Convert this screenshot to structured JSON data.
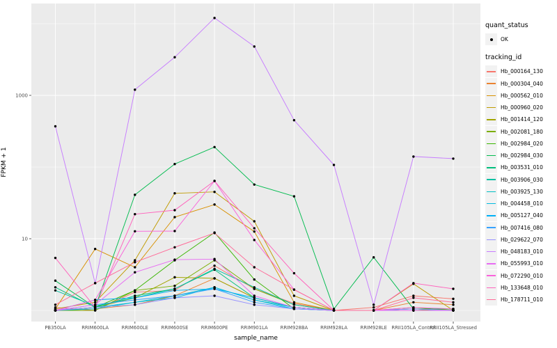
{
  "figure": {
    "y_axis": {
      "title": "FPKM + 1",
      "ticks": [
        {
          "label": "1000",
          "value": 1000
        },
        {
          "label": "10",
          "value": 10
        }
      ]
    },
    "x_axis": {
      "title": "sample_name"
    },
    "legend": {
      "quant_status": {
        "title": "quant_status",
        "items": [
          {
            "label": "OK",
            "marker": "point-icon",
            "color": "#000000"
          }
        ]
      },
      "tracking_id": {
        "title": "tracking_id"
      }
    },
    "colors": {
      "panel_bg": "#EBEBEB",
      "grid": "#FFFFFF",
      "tick_text": "#4D4D4D",
      "tick_mark": "#333333",
      "point": "#000000",
      "legend_key_bg": "#F2F2F2"
    }
  },
  "chart_data": {
    "type": "line",
    "title": "",
    "xlabel": "sample_name",
    "ylabel": "FPKM + 1",
    "y_scale": "log10",
    "y_tick_values": [
      10,
      1000
    ],
    "y_minor_values": [
      1,
      100,
      10000
    ],
    "ylim": [
      0.9,
      18000
    ],
    "grid": true,
    "legend_position": "right",
    "point_color": "#000000",
    "categories": [
      "PB350LA",
      "RRIM600LA",
      "RRIM600LE",
      "RRIM600SE",
      "RRIM600PE",
      "RRIM901LA",
      "RRIM928BA",
      "RRIM928LA",
      "RRIM928LE",
      "RRII105LA_Control",
      "RRII105LA_Stressed"
    ],
    "series": [
      {
        "name": "Hb_000164_130",
        "color": "#F8766D",
        "values": [
          1.1,
          1.0,
          1.8,
          1.9,
          4.2,
          2.0,
          1.25,
          1.0,
          1.1,
          1.6,
          1.45
        ]
      },
      {
        "name": "Hb_000304_040",
        "color": "#EA8331",
        "values": [
          1.0,
          1.05,
          1.2,
          1.6,
          2.8,
          1.5,
          1.1,
          1.0,
          1.0,
          1.3,
          1.2
        ]
      },
      {
        "name": "Hb_000562_010",
        "color": "#D89000",
        "values": [
          1.05,
          7.2,
          4.0,
          20.0,
          30.0,
          12.6,
          1.3,
          1.0,
          1.0,
          1.05,
          1.0
        ]
      },
      {
        "name": "Hb_000960_020",
        "color": "#C09B00",
        "values": [
          1.05,
          1.3,
          5.0,
          43.0,
          45.0,
          17.5,
          1.6,
          1.0,
          1.0,
          2.35,
          1.0
        ]
      },
      {
        "name": "Hb_001414_120",
        "color": "#A3A500",
        "values": [
          1.0,
          1.1,
          1.5,
          2.9,
          2.8,
          1.5,
          1.1,
          1.0,
          1.0,
          1.1,
          1.0
        ]
      },
      {
        "name": "Hb_002081_180",
        "color": "#7CAE00",
        "values": [
          1.0,
          1.0,
          1.9,
          2.2,
          5.0,
          2.0,
          1.2,
          1.0,
          1.0,
          1.0,
          1.05
        ]
      },
      {
        "name": "Hb_002984_020",
        "color": "#39B600",
        "values": [
          1.0,
          1.1,
          1.9,
          5.0,
          12.2,
          2.7,
          1.05,
          1.0,
          1.0,
          1.0,
          1.0
        ]
      },
      {
        "name": "Hb_002984_030",
        "color": "#00BB4E",
        "values": [
          2.6,
          1.1,
          41.0,
          110.0,
          190.0,
          57.0,
          39.0,
          1.05,
          5.5,
          1.05,
          1.05
        ]
      },
      {
        "name": "Hb_003531_010",
        "color": "#00BF7D",
        "values": [
          2.1,
          1.1,
          1.6,
          2.0,
          3.7,
          1.5,
          1.1,
          1.0,
          1.0,
          1.05,
          1.0
        ]
      },
      {
        "name": "Hb_003906_030",
        "color": "#00C1A3",
        "values": [
          1.9,
          1.15,
          1.5,
          2.0,
          3.8,
          2.1,
          1.2,
          1.0,
          1.0,
          1.0,
          1.0
        ]
      },
      {
        "name": "Hb_003925_130",
        "color": "#00BFC4",
        "values": [
          1.0,
          1.05,
          1.3,
          1.6,
          2.1,
          1.4,
          1.1,
          1.0,
          1.0,
          1.0,
          1.0
        ]
      },
      {
        "name": "Hb_004458_010",
        "color": "#00BAE0",
        "values": [
          1.0,
          1.1,
          1.3,
          1.5,
          2.1,
          1.4,
          1.05,
          1.0,
          1.0,
          1.0,
          1.0
        ]
      },
      {
        "name": "Hb_005127_040",
        "color": "#00B0F6",
        "values": [
          1.0,
          1.4,
          1.5,
          1.9,
          2.0,
          1.5,
          1.1,
          1.0,
          1.0,
          1.05,
          1.0
        ]
      },
      {
        "name": "Hb_007416_080",
        "color": "#35A2FF",
        "values": [
          1.0,
          1.2,
          1.4,
          1.6,
          2.0,
          1.3,
          1.05,
          1.0,
          1.0,
          1.0,
          1.0
        ]
      },
      {
        "name": "Hb_029622_070",
        "color": "#9590FF",
        "values": [
          1.0,
          1.1,
          1.2,
          1.5,
          1.6,
          1.2,
          1.05,
          1.0,
          1.0,
          1.05,
          1.0
        ]
      },
      {
        "name": "Hb_048183_010",
        "color": "#C77CFF",
        "values": [
          370,
          2.4,
          1200,
          3400,
          12000,
          4800,
          450,
          107,
          1.2,
          140,
          131
        ]
      },
      {
        "name": "Hb_055993_010",
        "color": "#E76BF3",
        "values": [
          1.0,
          1.2,
          3.4,
          5.1,
          5.2,
          1.6,
          1.1,
          1.0,
          1.0,
          1.0,
          1.0
        ]
      },
      {
        "name": "Hb_072290_010",
        "color": "#FA62DB",
        "values": [
          1.0,
          1.4,
          12.7,
          12.8,
          64.0,
          9.6,
          1.95,
          1.0,
          1.0,
          1.1,
          1.05
        ]
      },
      {
        "name": "Hb_133648_010",
        "color": "#FF62BC",
        "values": [
          5.4,
          1.1,
          22.0,
          25.0,
          64.0,
          14.0,
          3.3,
          1.0,
          1.0,
          2.4,
          2.0
        ]
      },
      {
        "name": "Hb_178711_010",
        "color": "#FF6A98",
        "values": [
          1.2,
          2.4,
          4.7,
          7.6,
          12.0,
          4.0,
          1.95,
          1.0,
          1.0,
          1.5,
          1.3
        ]
      }
    ]
  }
}
